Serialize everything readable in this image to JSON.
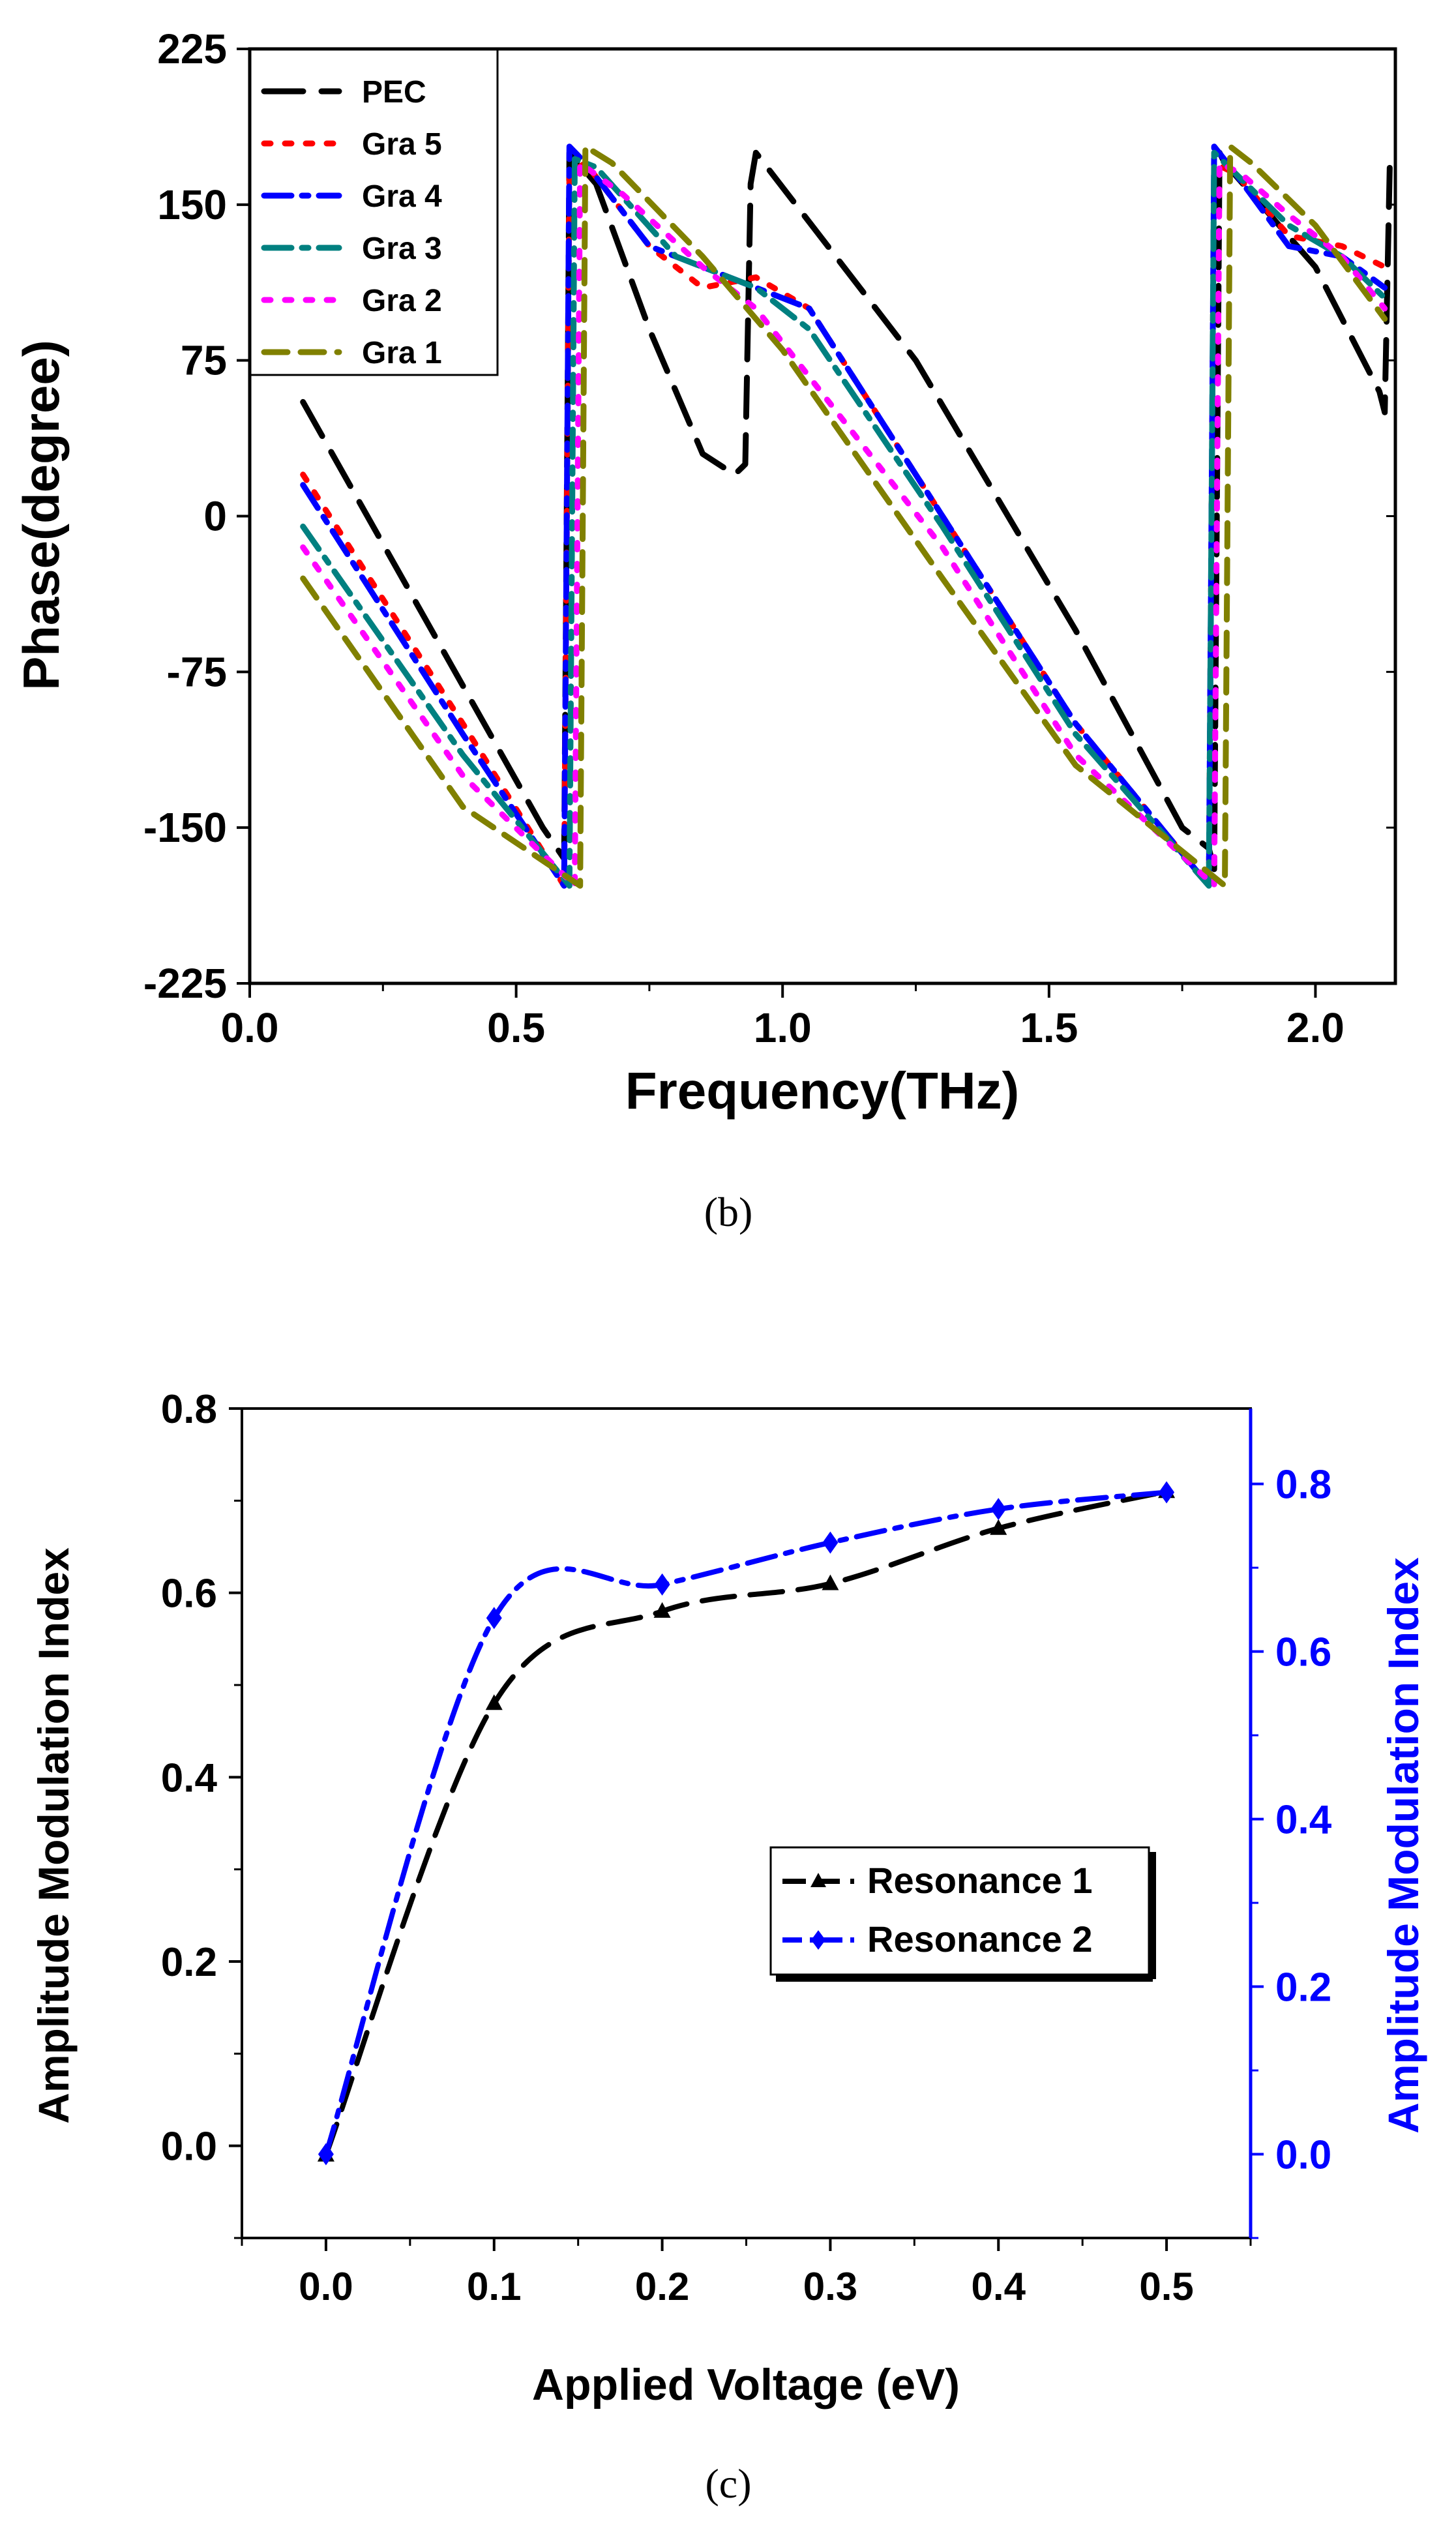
{
  "chart_data": [
    {
      "type": "line",
      "xlabel": "Frequency(THz)",
      "ylabel": "Phase(degree)",
      "xlim": [
        0.0,
        2.15
      ],
      "ylim": [
        -225,
        225
      ],
      "x_ticks": [
        "0.0",
        "0.5",
        "1.0",
        "1.5",
        "2.0"
      ],
      "y_ticks": [
        "-225",
        "-150",
        "-75",
        "0",
        "75",
        "150",
        "225"
      ],
      "caption": "(b)",
      "legend_position": "top-left",
      "series": [
        {
          "name": "PEC",
          "color": "#000000",
          "dash": "long-dash",
          "points": [
            [
              0.1,
              55
            ],
            [
              0.55,
              -150
            ],
            [
              0.59,
              -165
            ],
            [
              0.6,
              175
            ],
            [
              0.65,
              160
            ],
            [
              0.75,
              90
            ],
            [
              0.85,
              30
            ],
            [
              0.91,
              20
            ],
            [
              0.93,
              25
            ],
            [
              0.94,
              160
            ],
            [
              0.95,
              175
            ],
            [
              1.25,
              75
            ],
            [
              1.55,
              -55
            ],
            [
              1.75,
              -150
            ],
            [
              1.8,
              -160
            ],
            [
              1.81,
              -170
            ],
            [
              1.82,
              175
            ],
            [
              1.83,
              170
            ],
            [
              2.0,
              120
            ],
            [
              2.12,
              60
            ],
            [
              2.13,
              50
            ],
            [
              2.14,
              175
            ]
          ]
        },
        {
          "name": "Gra 5",
          "color": "#ff0000",
          "dash": "dot",
          "points": [
            [
              0.1,
              20
            ],
            [
              0.4,
              -100
            ],
            [
              0.59,
              -178
            ],
            [
              0.6,
              165
            ],
            [
              0.63,
              170
            ],
            [
              0.75,
              130
            ],
            [
              0.85,
              110
            ],
            [
              0.95,
              115
            ],
            [
              1.05,
              100
            ],
            [
              1.3,
              0
            ],
            [
              1.55,
              -100
            ],
            [
              1.8,
              -178
            ],
            [
              1.81,
              170
            ],
            [
              1.85,
              165
            ],
            [
              1.95,
              135
            ],
            [
              2.05,
              130
            ],
            [
              2.13,
              120
            ]
          ]
        },
        {
          "name": "Gra 4",
          "color": "#0000ff",
          "dash": "dash-dot",
          "points": [
            [
              0.1,
              15
            ],
            [
              0.4,
              -105
            ],
            [
              0.59,
              -178
            ],
            [
              0.6,
              178
            ],
            [
              0.63,
              170
            ],
            [
              0.75,
              130
            ],
            [
              0.85,
              120
            ],
            [
              0.95,
              110
            ],
            [
              1.05,
              100
            ],
            [
              1.3,
              0
            ],
            [
              1.55,
              -100
            ],
            [
              1.8,
              -178
            ],
            [
              1.81,
              178
            ],
            [
              1.85,
              165
            ],
            [
              1.95,
              130
            ],
            [
              2.05,
              125
            ],
            [
              2.13,
              110
            ]
          ]
        },
        {
          "name": "Gra 3",
          "color": "#008080",
          "dash": "dash-dot",
          "points": [
            [
              0.1,
              -5
            ],
            [
              0.4,
              -115
            ],
            [
              0.6,
              -178
            ],
            [
              0.61,
              172
            ],
            [
              0.65,
              168
            ],
            [
              0.8,
              125
            ],
            [
              0.95,
              110
            ],
            [
              1.05,
              90
            ],
            [
              1.3,
              -5
            ],
            [
              1.55,
              -105
            ],
            [
              1.8,
              -178
            ],
            [
              1.81,
              175
            ],
            [
              1.85,
              165
            ],
            [
              1.95,
              140
            ],
            [
              2.05,
              125
            ],
            [
              2.13,
              105
            ]
          ]
        },
        {
          "name": "Gra 2",
          "color": "#ff00ff",
          "dash": "dot",
          "points": [
            [
              0.1,
              -15
            ],
            [
              0.4,
              -125
            ],
            [
              0.61,
              -178
            ],
            [
              0.62,
              170
            ],
            [
              0.7,
              155
            ],
            [
              0.85,
              120
            ],
            [
              0.95,
              100
            ],
            [
              1.3,
              -15
            ],
            [
              1.55,
              -115
            ],
            [
              1.81,
              -178
            ],
            [
              1.82,
              170
            ],
            [
              1.86,
              165
            ],
            [
              1.95,
              145
            ],
            [
              2.05,
              125
            ],
            [
              2.13,
              100
            ]
          ]
        },
        {
          "name": "Gra 1",
          "color": "#808000",
          "dash": "dash",
          "points": [
            [
              0.1,
              -30
            ],
            [
              0.4,
              -140
            ],
            [
              0.62,
              -178
            ],
            [
              0.63,
              178
            ],
            [
              0.68,
              170
            ],
            [
              0.85,
              125
            ],
            [
              1.0,
              80
            ],
            [
              1.3,
              -30
            ],
            [
              1.55,
              -120
            ],
            [
              1.83,
              -178
            ],
            [
              1.84,
              178
            ],
            [
              1.88,
              170
            ],
            [
              2.0,
              140
            ],
            [
              2.13,
              95
            ]
          ]
        }
      ]
    },
    {
      "type": "line",
      "xlabel": "Applied Voltage (eV)",
      "ylabel": "Amplitude Modulation Index",
      "ylabel_right": "Amplitude Modulation Index",
      "xlim": [
        -0.05,
        0.55
      ],
      "ylim": [
        -0.1,
        0.8
      ],
      "ylim_right": [
        -0.1,
        0.89
      ],
      "x_ticks": [
        "0.0",
        "0.1",
        "0.2",
        "0.3",
        "0.4",
        "0.5"
      ],
      "y_ticks": [
        "0.0",
        "0.2",
        "0.4",
        "0.6",
        "0.8"
      ],
      "y_ticks_right": [
        "0.0",
        "0.2",
        "0.4",
        "0.6",
        "0.8"
      ],
      "caption": "(c)",
      "legend_position": "center-right",
      "series": [
        {
          "name": "Resonance 1",
          "color": "#000000",
          "marker": "triangle",
          "axis": "left",
          "x": [
            0.0,
            0.1,
            0.2,
            0.3,
            0.4,
            0.5
          ],
          "y": [
            -0.01,
            0.48,
            0.58,
            0.61,
            0.67,
            0.71
          ]
        },
        {
          "name": "Resonance 2",
          "color": "#0000ff",
          "marker": "diamond",
          "axis": "right",
          "x": [
            0.0,
            0.1,
            0.2,
            0.3,
            0.4,
            0.5
          ],
          "y": [
            0.0,
            0.64,
            0.68,
            0.73,
            0.77,
            0.79
          ]
        }
      ]
    }
  ]
}
